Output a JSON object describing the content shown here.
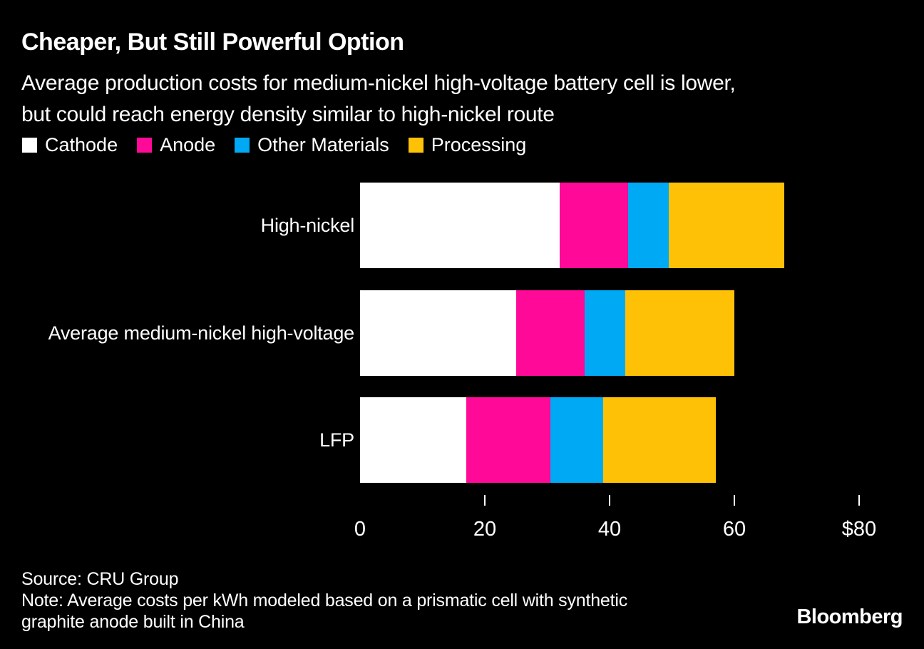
{
  "header": {
    "title": "Cheaper, But Still Powerful Option",
    "subtitle_lines": [
      "Average production costs for medium-nickel high-voltage battery cell is lower,",
      "but could reach energy density similar to high-nickel route"
    ]
  },
  "chart_data": {
    "type": "bar",
    "orientation": "horizontal",
    "stacked": true,
    "title": "Cheaper, But Still Powerful Option",
    "categories": [
      "High-nickel",
      "Average medium-nickel high-voltage",
      "LFP"
    ],
    "series": [
      {
        "name": "Cathode",
        "color": "#FFFFFF",
        "values": [
          32,
          25,
          17
        ]
      },
      {
        "name": "Anode",
        "color": "#FF0A98",
        "values": [
          11,
          11,
          13.5
        ]
      },
      {
        "name": "Other Materials",
        "color": "#00A9F4",
        "values": [
          6.5,
          6.5,
          8.5
        ]
      },
      {
        "name": "Processing",
        "color": "#FFC105",
        "values": [
          18.5,
          17.5,
          18
        ]
      }
    ],
    "xlabel": "",
    "ylabel": "",
    "xlim": [
      0,
      80
    ],
    "x_ticks": {
      "values": [
        0,
        20,
        40,
        60,
        80
      ],
      "labels": [
        "0",
        "20",
        "40",
        "60",
        "$80"
      ]
    },
    "grid": false,
    "legend_position": "top"
  },
  "footer": {
    "source": "Source: CRU Group",
    "note_lines": [
      "Note: Average costs per kWh modeled based on a prismatic cell with synthetic",
      "graphite anode built in China"
    ],
    "logo": "Bloomberg"
  },
  "colors": {
    "background": "#000000",
    "text": "#FFFFFF"
  }
}
